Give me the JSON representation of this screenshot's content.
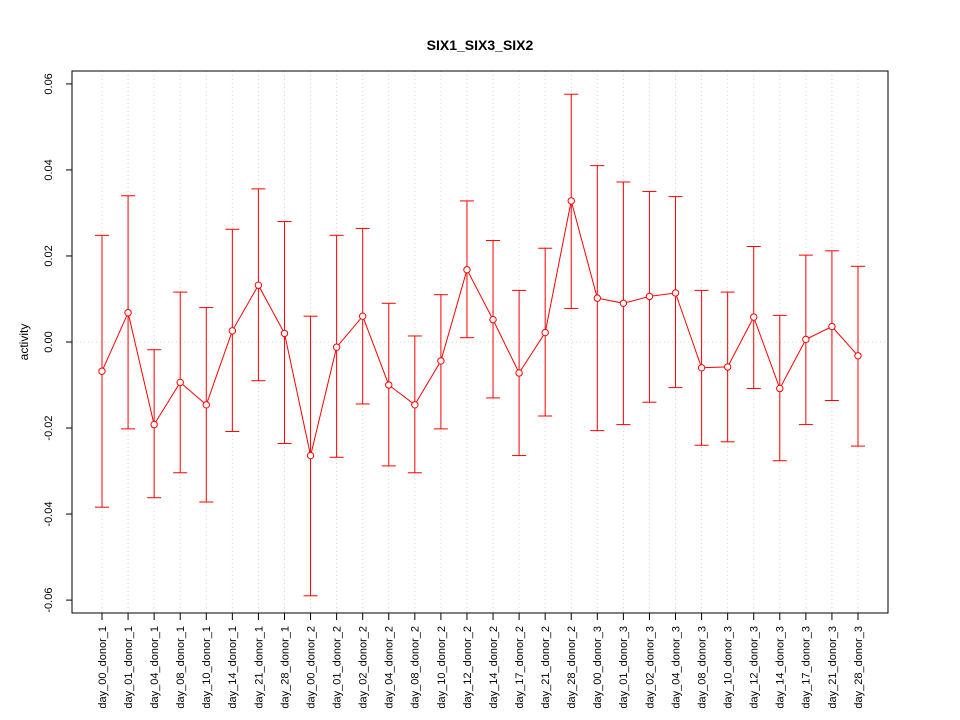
{
  "chart_data": {
    "type": "line",
    "title": "SIX1_SIX3_SIX2",
    "xlabel": "",
    "ylabel": "activity",
    "ylim": [
      -0.063,
      0.063
    ],
    "yticks": [
      -0.06,
      -0.04,
      -0.02,
      0.0,
      0.02,
      0.04,
      0.06
    ],
    "ytick_labels": [
      "-0.06",
      "-0.04",
      "-0.02",
      "0.00",
      "0.02",
      "0.04",
      "0.06"
    ],
    "grid": true,
    "color": "#ff0000",
    "categories": [
      "day_00_donor_1",
      "day_01_donor_1",
      "day_04_donor_1",
      "day_08_donor_1",
      "day_10_donor_1",
      "day_14_donor_1",
      "day_21_donor_1",
      "day_28_donor_1",
      "day_00_donor_2",
      "day_01_donor_2",
      "day_02_donor_2",
      "day_04_donor_2",
      "day_08_donor_2",
      "day_10_donor_2",
      "day_12_donor_2",
      "day_14_donor_2",
      "day_17_donor_2",
      "day_21_donor_2",
      "day_28_donor_2",
      "day_00_donor_3",
      "day_01_donor_3",
      "day_02_donor_3",
      "day_04_donor_3",
      "day_08_donor_3",
      "day_10_donor_3",
      "day_12_donor_3",
      "day_14_donor_3",
      "day_17_donor_3",
      "day_21_donor_3",
      "day_28_donor_3"
    ],
    "values": [
      -0.0068,
      0.0068,
      -0.0192,
      -0.0094,
      -0.0146,
      0.0026,
      0.0132,
      0.002,
      -0.0264,
      -0.0012,
      0.006,
      -0.01,
      -0.0146,
      -0.0044,
      0.0168,
      0.0052,
      -0.0072,
      0.0022,
      0.0328,
      0.0102,
      0.009,
      0.0106,
      0.0114,
      -0.006,
      -0.0058,
      0.0058,
      -0.0108,
      0.0006,
      0.0036,
      -0.0032
    ],
    "upper": [
      0.0248,
      0.034,
      -0.0018,
      0.0116,
      0.008,
      0.0262,
      0.0356,
      0.028,
      0.006,
      0.0248,
      0.0264,
      0.009,
      0.0014,
      0.011,
      0.0328,
      0.0236,
      0.012,
      0.0218,
      0.0576,
      0.041,
      0.0372,
      0.035,
      0.0338,
      0.012,
      0.0116,
      0.0222,
      0.0062,
      0.0202,
      0.0212,
      0.0176
    ],
    "lower": [
      -0.0384,
      -0.0202,
      -0.0362,
      -0.0304,
      -0.0372,
      -0.0208,
      -0.009,
      -0.0236,
      -0.059,
      -0.0268,
      -0.0144,
      -0.0288,
      -0.0304,
      -0.0202,
      0.001,
      -0.013,
      -0.0264,
      -0.0172,
      0.0078,
      -0.0206,
      -0.0192,
      -0.014,
      -0.0106,
      -0.024,
      -0.0232,
      -0.0108,
      -0.0276,
      -0.0192,
      -0.0136,
      -0.0242
    ]
  }
}
